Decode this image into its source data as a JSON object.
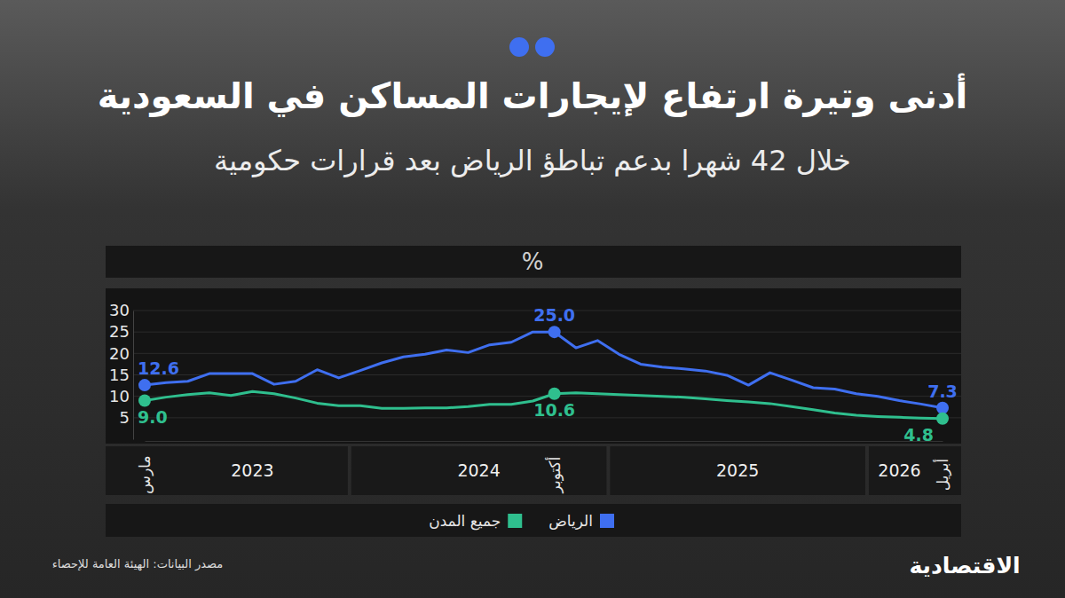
{
  "chart_data": {
    "type": "line",
    "title": "أدنى وتيرة ارتفاع لإيجارات المساكن في السعودية",
    "subtitle": "خلال 42 شهرا بدعم تباطؤ الرياض بعد قرارات حكومية",
    "y_label": "%",
    "categories": [
      "مارس",
      null,
      null,
      null,
      null,
      null,
      null,
      null,
      null,
      null,
      null,
      null,
      null,
      null,
      null,
      null,
      null,
      null,
      null,
      "أكتوبر",
      null,
      null,
      null,
      null,
      null,
      null,
      null,
      null,
      null,
      null,
      null,
      null,
      null,
      null,
      null,
      null,
      null,
      "أبريل"
    ],
    "x_groups": [
      {
        "label": "2023",
        "count": 10
      },
      {
        "label": "2024",
        "count": 12
      },
      {
        "label": "2025",
        "count": 12
      },
      {
        "label": "2026",
        "count": 4
      }
    ],
    "series": [
      {
        "name": "الرياض",
        "color": "#3f6ff0",
        "values": [
          12.6,
          13.2,
          13.5,
          15.3,
          15.3,
          15.3,
          12.8,
          13.5,
          16.2,
          14.3,
          16.0,
          17.8,
          19.2,
          19.8,
          20.8,
          20.2,
          22.0,
          22.6,
          25.0,
          25.0,
          21.3,
          23.0,
          19.8,
          17.5,
          16.8,
          16.4,
          15.9,
          14.9,
          12.6,
          15.5,
          13.8,
          12.0,
          11.7,
          10.6,
          10.0,
          9.0,
          8.2,
          7.3
        ],
        "value_labels": [
          "12.6",
          null,
          null,
          null,
          null,
          null,
          null,
          null,
          null,
          null,
          null,
          null,
          null,
          null,
          null,
          null,
          null,
          null,
          null,
          "25.0",
          null,
          null,
          null,
          null,
          null,
          null,
          null,
          null,
          null,
          null,
          null,
          null,
          null,
          null,
          null,
          null,
          null,
          "7.3"
        ]
      },
      {
        "name": "جميع المدن",
        "color": "#2fbf8e",
        "values": [
          9.0,
          9.8,
          10.4,
          10.8,
          10.2,
          11.1,
          10.6,
          9.6,
          8.4,
          7.8,
          7.8,
          7.2,
          7.2,
          7.3,
          7.3,
          7.6,
          8.1,
          8.1,
          8.9,
          10.6,
          10.8,
          10.6,
          10.4,
          10.2,
          10.0,
          9.8,
          9.4,
          9.0,
          8.7,
          8.3,
          7.6,
          6.9,
          6.1,
          5.6,
          5.3,
          5.1,
          4.9,
          4.8
        ],
        "value_labels": [
          "9.0",
          null,
          null,
          null,
          null,
          null,
          null,
          null,
          null,
          null,
          null,
          null,
          null,
          null,
          null,
          null,
          null,
          null,
          null,
          "10.6",
          null,
          null,
          null,
          null,
          null,
          null,
          null,
          null,
          null,
          null,
          null,
          null,
          null,
          null,
          null,
          null,
          null,
          "4.8"
        ]
      }
    ],
    "ylim": [
      0,
      30
    ],
    "yticks": [
      5,
      10,
      15,
      20,
      25,
      30
    ],
    "grid": true,
    "legend": "bottom",
    "source": "مصدر البيانات: الهيئة العامة للإحصاء",
    "publisher": "الاقتصادية"
  }
}
